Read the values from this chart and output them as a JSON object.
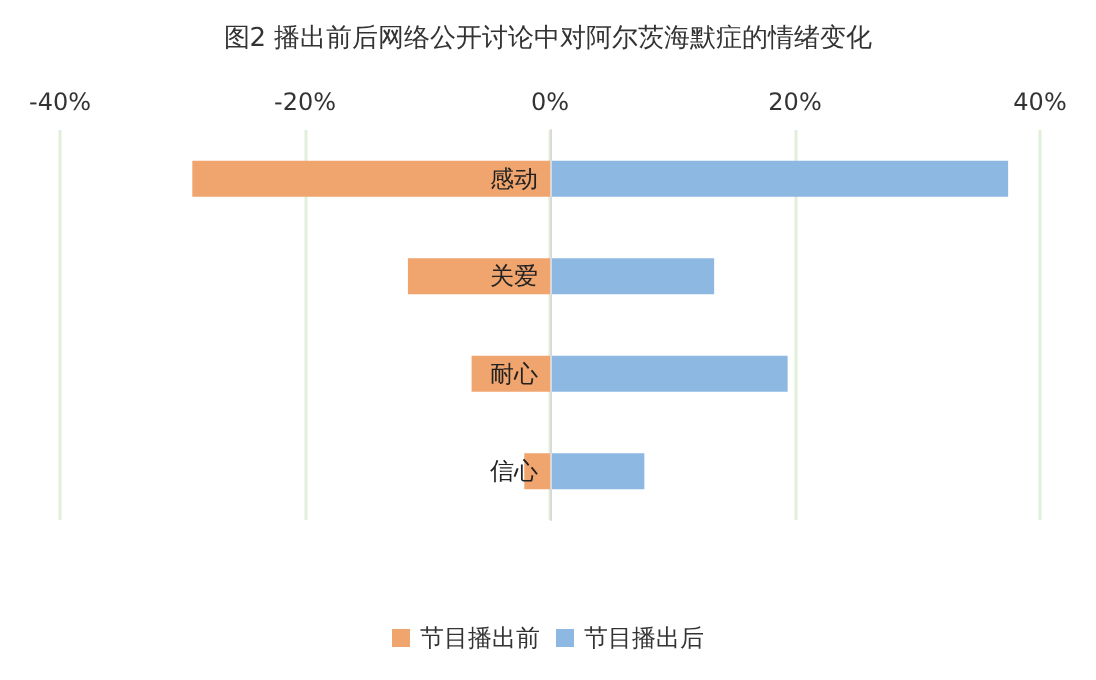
{
  "chart_data": {
    "type": "bar",
    "orientation": "horizontal",
    "title": "图2 播出前后网络公开讨论中对阿尔茨海默症的情绪变化",
    "categories": [
      "感动",
      "关爱",
      "耐心",
      "信心"
    ],
    "series": [
      {
        "name": "节目播出前",
        "color": "#f0a46e",
        "values": [
          -29.2,
          -11.6,
          -6.4,
          -2.1
        ]
      },
      {
        "name": "节目播出后",
        "color": "#8db8e2",
        "values": [
          37.4,
          13.4,
          19.4,
          7.7
        ]
      }
    ],
    "xlim": [
      -40,
      40
    ],
    "xticks": [
      {
        "value": -40,
        "label": "-40%"
      },
      {
        "value": -20,
        "label": "-20%"
      },
      {
        "value": 0,
        "label": "0%"
      },
      {
        "value": 20,
        "label": "20%"
      },
      {
        "value": 40,
        "label": "40%"
      }
    ],
    "grid": "x",
    "legend": "bottom",
    "stacked": true
  }
}
